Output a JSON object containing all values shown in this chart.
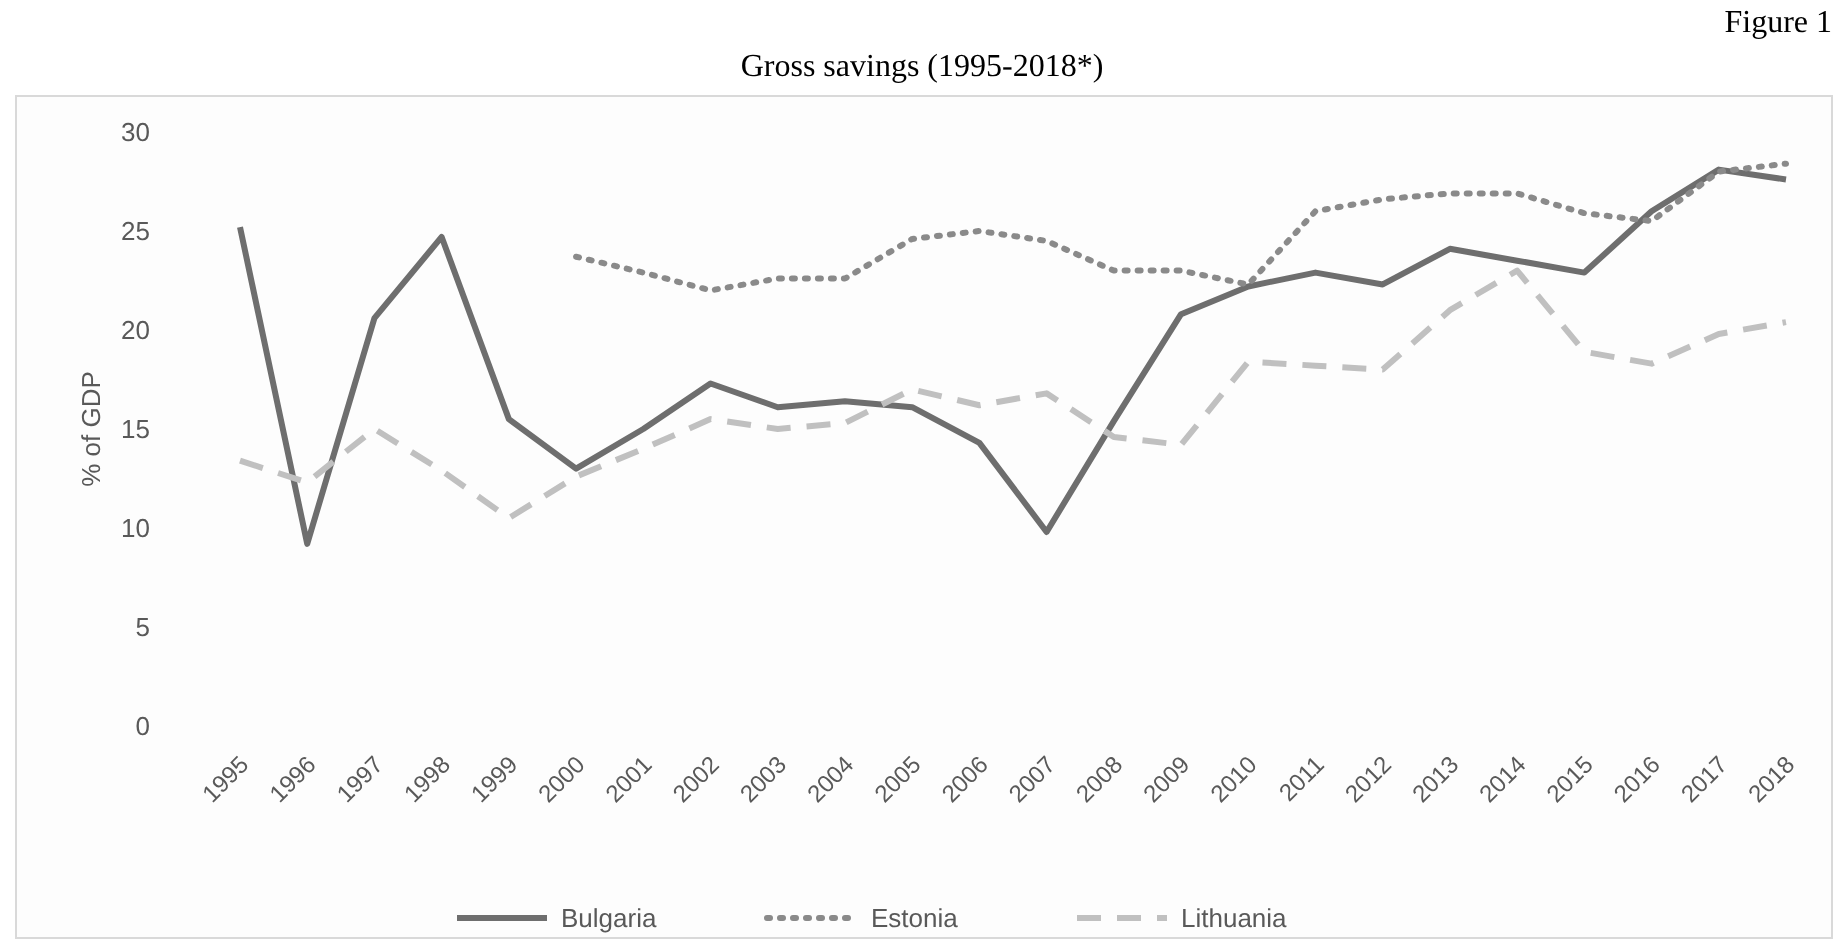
{
  "chart_data": {
    "type": "line",
    "title": "Gross savings (1995-2018*)",
    "ylabel": "% of GDP",
    "annotations": [
      "Figure 1"
    ],
    "categories": [
      "1995",
      "1996",
      "1997",
      "1998",
      "1999",
      "2000",
      "2001",
      "2002",
      "2003",
      "2004",
      "2005",
      "2006",
      "2007",
      "2008",
      "2009",
      "2010",
      "2011",
      "2012",
      "2013",
      "2014",
      "2015",
      "2016",
      "2017",
      "2018"
    ],
    "series": [
      {
        "name": "Bulgaria",
        "color": "#6e6e6e",
        "line_style": "solid",
        "values": [
          25.2,
          9.2,
          20.6,
          24.7,
          15.5,
          13.0,
          15.0,
          17.3,
          16.1,
          16.4,
          16.1,
          14.3,
          9.8,
          15.4,
          20.8,
          22.2,
          22.9,
          22.3,
          24.1,
          23.5,
          22.9,
          26.0,
          28.1,
          27.6
        ]
      },
      {
        "name": "Estonia",
        "color": "#8a8a8a",
        "line_style": "dotted",
        "values": [
          null,
          null,
          null,
          null,
          null,
          23.7,
          22.9,
          22.0,
          22.6,
          22.6,
          24.6,
          25.0,
          24.5,
          23.0,
          23.0,
          22.3,
          26.0,
          26.6,
          26.9,
          26.9,
          25.9,
          25.5,
          28.0,
          28.4
        ]
      },
      {
        "name": "Lithuania",
        "color": "#c0c0c0",
        "line_style": "dashed",
        "values": [
          13.4,
          12.3,
          15.0,
          12.9,
          10.5,
          12.6,
          14.0,
          15.5,
          15.0,
          15.3,
          17.0,
          16.2,
          16.8,
          14.6,
          14.2,
          18.4,
          18.2,
          18.0,
          21.0,
          23.0,
          18.9,
          18.3,
          19.8,
          20.4
        ]
      }
    ],
    "ylim": [
      0,
      30
    ],
    "yticks": [
      0,
      5,
      10,
      15,
      20,
      25,
      30
    ],
    "grid": false,
    "legend": "bottom",
    "marker": "none"
  }
}
